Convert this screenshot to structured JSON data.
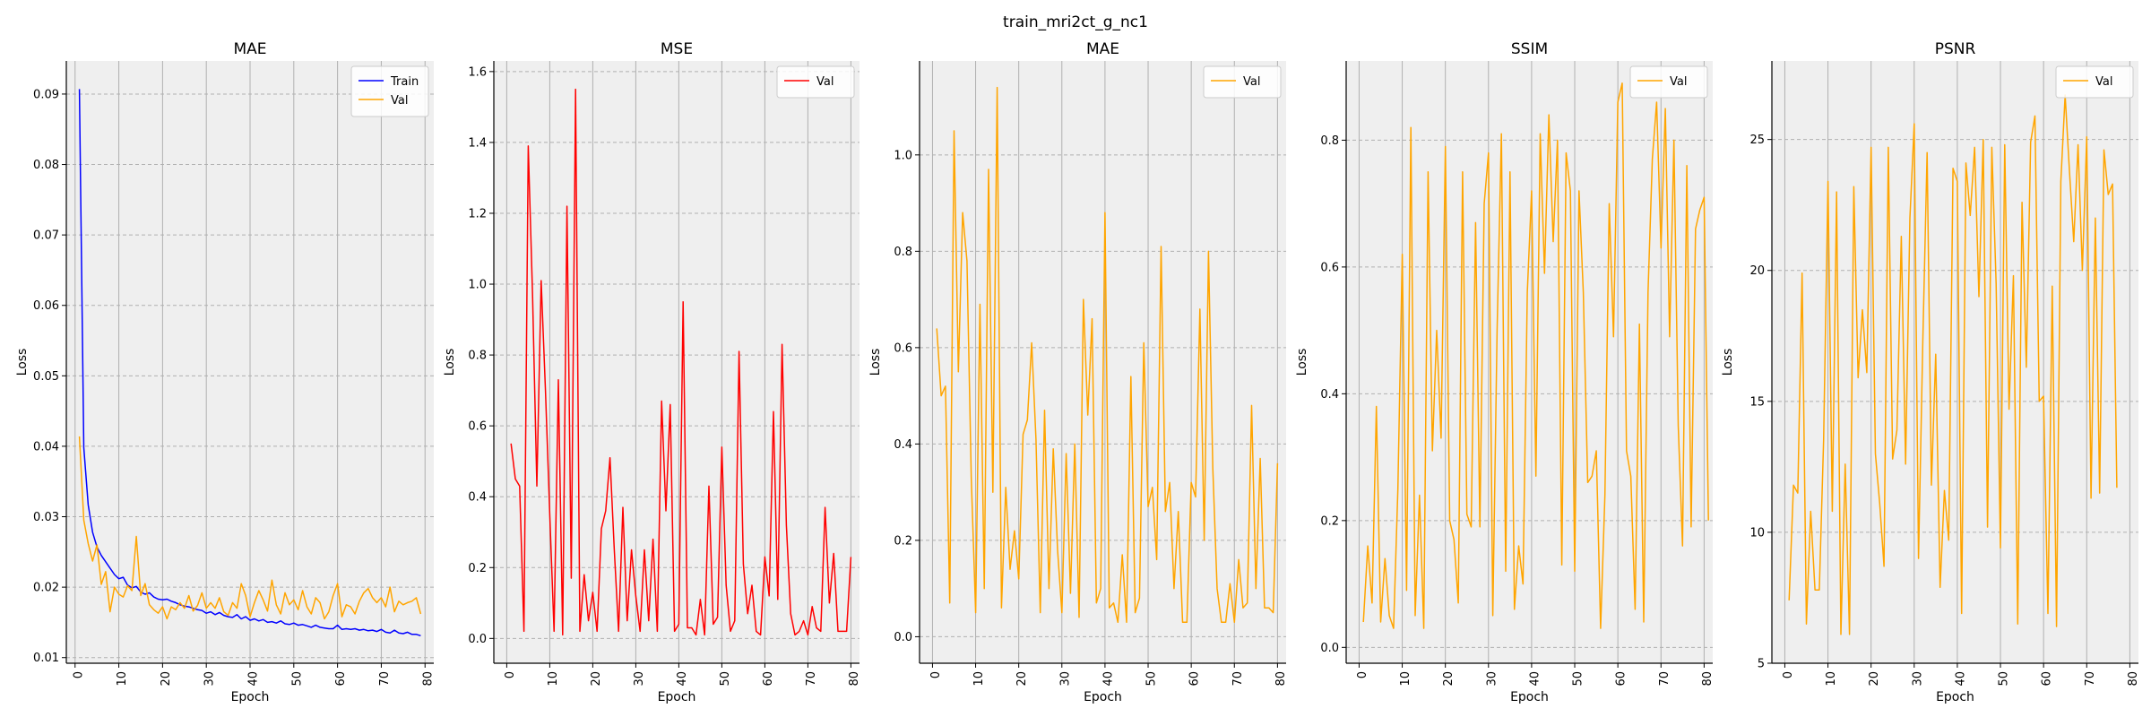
{
  "figure": {
    "title": "train_mri2ct_g_nc1"
  },
  "chart_data": [
    {
      "type": "line",
      "title": "MAE",
      "xlabel": "Epoch",
      "ylabel": "Loss",
      "xlim": [
        -2,
        82
      ],
      "ylim": [
        0.0092,
        0.0947
      ],
      "xticks": [
        0,
        10,
        20,
        30,
        40,
        50,
        60,
        70,
        80
      ],
      "yticks": [
        0.01,
        0.02,
        0.03,
        0.04,
        0.05,
        0.06,
        0.07,
        0.08,
        0.09
      ],
      "yticklabels": [
        "0.01",
        "0.02",
        "0.03",
        "0.04",
        "0.05",
        "0.06",
        "0.07",
        "0.08",
        "0.09"
      ],
      "legend": "top-right",
      "series": [
        {
          "name": "Train",
          "color": "#0000ff",
          "values": [
            0.0907,
            0.0398,
            0.0317,
            0.0278,
            0.0257,
            0.0245,
            0.0236,
            0.0227,
            0.0218,
            0.0212,
            0.0214,
            0.0203,
            0.0199,
            0.0201,
            0.0193,
            0.019,
            0.0192,
            0.0186,
            0.0183,
            0.0182,
            0.0183,
            0.018,
            0.0178,
            0.0175,
            0.0173,
            0.0172,
            0.017,
            0.0168,
            0.0167,
            0.0163,
            0.0165,
            0.0161,
            0.0164,
            0.016,
            0.0158,
            0.0157,
            0.0161,
            0.0155,
            0.0158,
            0.0153,
            0.0155,
            0.0152,
            0.0154,
            0.015,
            0.0151,
            0.0149,
            0.0152,
            0.0148,
            0.0147,
            0.0149,
            0.0146,
            0.0147,
            0.0145,
            0.0143,
            0.0146,
            0.0143,
            0.0142,
            0.0141,
            0.0141,
            0.0146,
            0.014,
            0.0141,
            0.014,
            0.0141,
            0.0139,
            0.014,
            0.0138,
            0.0139,
            0.0137,
            0.014,
            0.0136,
            0.0135,
            0.0139,
            0.0135,
            0.0134,
            0.0136,
            0.0133,
            0.0133,
            0.0131
          ]
        },
        {
          "name": "Val",
          "color": "#ffa500",
          "values": [
            0.0414,
            0.0295,
            0.0262,
            0.0237,
            0.026,
            0.0204,
            0.0222,
            0.0165,
            0.02,
            0.019,
            0.0186,
            0.0202,
            0.0195,
            0.0272,
            0.0188,
            0.0205,
            0.0175,
            0.0168,
            0.0163,
            0.0172,
            0.0155,
            0.0172,
            0.0168,
            0.0178,
            0.017,
            0.0188,
            0.0166,
            0.0174,
            0.0192,
            0.017,
            0.0178,
            0.017,
            0.0185,
            0.0165,
            0.016,
            0.0178,
            0.017,
            0.0205,
            0.0188,
            0.0158,
            0.0178,
            0.0195,
            0.0182,
            0.0166,
            0.021,
            0.0175,
            0.0162,
            0.0192,
            0.0175,
            0.0182,
            0.0168,
            0.0195,
            0.0172,
            0.0162,
            0.0185,
            0.0178,
            0.0155,
            0.0165,
            0.0188,
            0.0205,
            0.0158,
            0.0175,
            0.0172,
            0.0162,
            0.018,
            0.0192,
            0.0198,
            0.0185,
            0.0178,
            0.0185,
            0.0172,
            0.02,
            0.0165,
            0.018,
            0.0175,
            0.0178,
            0.018,
            0.0185,
            0.0162
          ]
        }
      ]
    },
    {
      "type": "line",
      "title": "MSE",
      "xlabel": "Epoch",
      "ylabel": "Loss",
      "xlim": [
        -3,
        82
      ],
      "ylim": [
        -0.07,
        1.63
      ],
      "xticks": [
        0,
        10,
        20,
        30,
        40,
        50,
        60,
        70,
        80
      ],
      "yticks": [
        0.0,
        0.2,
        0.4,
        0.6,
        0.8,
        1.0,
        1.2,
        1.4,
        1.6
      ],
      "yticklabels": [
        "0.0",
        "0.2",
        "0.4",
        "0.6",
        "0.8",
        "1.0",
        "1.2",
        "1.4",
        "1.6"
      ],
      "legend": "top-right",
      "series": [
        {
          "name": "Val",
          "color": "#ff0000",
          "values": [
            0.55,
            0.45,
            0.43,
            0.02,
            1.39,
            0.97,
            0.43,
            1.01,
            0.7,
            0.35,
            0.02,
            0.73,
            0.01,
            1.22,
            0.17,
            1.55,
            0.02,
            0.18,
            0.05,
            0.13,
            0.02,
            0.31,
            0.36,
            0.51,
            0.25,
            0.02,
            0.37,
            0.05,
            0.25,
            0.12,
            0.02,
            0.25,
            0.05,
            0.28,
            0.02,
            0.67,
            0.36,
            0.66,
            0.02,
            0.04,
            0.95,
            0.03,
            0.03,
            0.01,
            0.11,
            0.01,
            0.43,
            0.04,
            0.06,
            0.54,
            0.15,
            0.02,
            0.05,
            0.81,
            0.21,
            0.07,
            0.15,
            0.02,
            0.01,
            0.23,
            0.12,
            0.64,
            0.11,
            0.83,
            0.32,
            0.07,
            0.01,
            0.02,
            0.05,
            0.01,
            0.09,
            0.03,
            0.02,
            0.37,
            0.1,
            0.24,
            0.02,
            0.02,
            0.02,
            0.23
          ]
        }
      ]
    },
    {
      "type": "line",
      "title": "MAE",
      "xlabel": "Epoch",
      "ylabel": "Loss",
      "xlim": [
        -3,
        82
      ],
      "ylim": [
        -0.055,
        1.195
      ],
      "xticks": [
        0,
        10,
        20,
        30,
        40,
        50,
        60,
        70,
        80
      ],
      "yticks": [
        0.0,
        0.2,
        0.4,
        0.6,
        0.8,
        1.0
      ],
      "yticklabels": [
        "0.0",
        "0.2",
        "0.4",
        "0.6",
        "0.8",
        "1.0"
      ],
      "legend": "top-right",
      "series": [
        {
          "name": "Val",
          "color": "#ffa500",
          "values": [
            0.64,
            0.5,
            0.52,
            0.07,
            1.05,
            0.55,
            0.88,
            0.78,
            0.33,
            0.05,
            0.69,
            0.1,
            0.97,
            0.3,
            1.14,
            0.06,
            0.31,
            0.14,
            0.22,
            0.12,
            0.42,
            0.45,
            0.61,
            0.41,
            0.05,
            0.47,
            0.1,
            0.39,
            0.18,
            0.05,
            0.38,
            0.09,
            0.4,
            0.04,
            0.7,
            0.46,
            0.66,
            0.07,
            0.1,
            0.88,
            0.06,
            0.07,
            0.03,
            0.17,
            0.03,
            0.54,
            0.05,
            0.08,
            0.61,
            0.27,
            0.31,
            0.16,
            0.81,
            0.26,
            0.32,
            0.1,
            0.26,
            0.03,
            0.03,
            0.32,
            0.29,
            0.68,
            0.2,
            0.8,
            0.35,
            0.1,
            0.03,
            0.03,
            0.11,
            0.03,
            0.16,
            0.06,
            0.07,
            0.48,
            0.1,
            0.37,
            0.06,
            0.06,
            0.05,
            0.36
          ]
        }
      ]
    },
    {
      "type": "line",
      "title": "SSIM",
      "xlabel": "Epoch",
      "ylabel": "Loss",
      "xlim": [
        -3,
        82
      ],
      "ylim": [
        -0.025,
        0.925
      ],
      "xticks": [
        0,
        10,
        20,
        30,
        40,
        50,
        60,
        70,
        80
      ],
      "yticks": [
        0.0,
        0.2,
        0.4,
        0.6,
        0.8
      ],
      "yticklabels": [
        "0.0",
        "0.2",
        "0.4",
        "0.6",
        "0.8"
      ],
      "legend": "top-right",
      "series": [
        {
          "name": "Val",
          "color": "#ffa500",
          "values": [
            0.04,
            0.16,
            0.07,
            0.38,
            0.04,
            0.14,
            0.05,
            0.03,
            0.25,
            0.62,
            0.09,
            0.82,
            0.05,
            0.24,
            0.03,
            0.75,
            0.31,
            0.5,
            0.33,
            0.79,
            0.2,
            0.17,
            0.07,
            0.75,
            0.21,
            0.19,
            0.67,
            0.19,
            0.7,
            0.78,
            0.05,
            0.5,
            0.81,
            0.12,
            0.75,
            0.06,
            0.16,
            0.1,
            0.56,
            0.72,
            0.27,
            0.81,
            0.59,
            0.84,
            0.64,
            0.8,
            0.13,
            0.78,
            0.72,
            0.12,
            0.72,
            0.56,
            0.26,
            0.27,
            0.31,
            0.03,
            0.24,
            0.7,
            0.49,
            0.86,
            0.89,
            0.31,
            0.27,
            0.06,
            0.51,
            0.04,
            0.56,
            0.77,
            0.86,
            0.63,
            0.85,
            0.49,
            0.8,
            0.35,
            0.16,
            0.76,
            0.19,
            0.66,
            0.69,
            0.71,
            0.2
          ]
        }
      ]
    },
    {
      "type": "line",
      "title": "PSNR",
      "xlabel": "Epoch",
      "ylabel": "Loss",
      "xlim": [
        -3,
        82
      ],
      "ylim": [
        5,
        28
      ],
      "xticks": [
        0,
        10,
        20,
        30,
        40,
        50,
        60,
        70,
        80
      ],
      "yticks": [
        5,
        10,
        15,
        20,
        25
      ],
      "yticklabels": [
        "5",
        "10",
        "15",
        "20",
        "25"
      ],
      "legend": "top-right",
      "series": [
        {
          "name": "Val",
          "color": "#ffa500",
          "values": [
            7.4,
            11.8,
            11.5,
            19.9,
            6.5,
            10.8,
            7.8,
            7.8,
            13.5,
            23.4,
            10.8,
            23.0,
            6.1,
            12.6,
            6.1,
            23.2,
            15.9,
            18.5,
            16.1,
            24.7,
            13.0,
            11.1,
            8.7,
            24.7,
            12.8,
            13.9,
            21.3,
            12.6,
            22.0,
            25.6,
            9.0,
            17.3,
            24.5,
            11.8,
            16.8,
            7.9,
            11.6,
            9.7,
            23.9,
            23.4,
            6.9,
            24.1,
            22.1,
            24.7,
            19.0,
            25.0,
            10.2,
            24.7,
            19.5,
            9.4,
            24.8,
            14.7,
            19.8,
            6.5,
            22.6,
            16.3,
            24.9,
            25.9,
            15.0,
            15.2,
            6.9,
            19.4,
            6.4,
            23.4,
            26.7,
            23.8,
            21.1,
            24.8,
            20.0,
            25.1,
            11.3,
            22.0,
            11.5,
            24.6,
            22.9,
            23.3,
            11.7
          ]
        }
      ]
    }
  ]
}
